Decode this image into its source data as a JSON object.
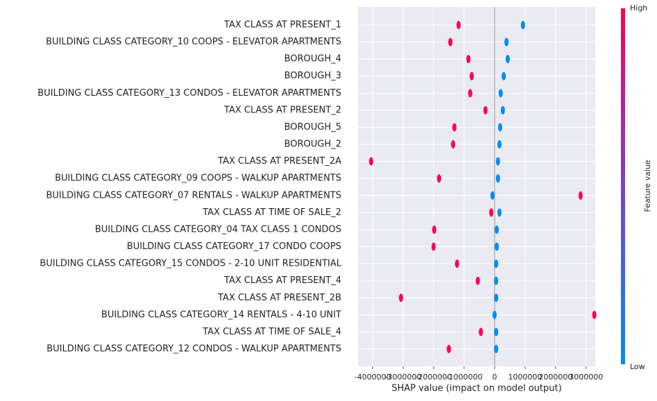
{
  "chart_data": {
    "type": "beeswarm",
    "xlabel": "SHAP value (impact on model output)",
    "colorbar_label": "Feature value",
    "colorbar_high": "High",
    "colorbar_low": "Low",
    "categories": [
      "TAX CLASS AT PRESENT_1",
      "BUILDING CLASS CATEGORY_10 COOPS - ELEVATOR APARTMENTS",
      "BOROUGH_4",
      "BOROUGH_3",
      "BUILDING CLASS CATEGORY_13 CONDOS - ELEVATOR APARTMENTS",
      "TAX CLASS AT PRESENT_2",
      "BOROUGH_5",
      "BOROUGH_2",
      "TAX CLASS AT PRESENT_2A",
      "BUILDING CLASS CATEGORY_09 COOPS - WALKUP APARTMENTS",
      "BUILDING CLASS CATEGORY_07 RENTALS - WALKUP APARTMENTS",
      "TAX CLASS AT TIME OF SALE_2",
      "BUILDING CLASS CATEGORY_04 TAX CLASS 1 CONDOS",
      "BUILDING CLASS CATEGORY_17 CONDO COOPS",
      "BUILDING CLASS CATEGORY_15 CONDOS - 2-10 UNIT RESIDENTIAL",
      "TAX CLASS AT PRESENT_4",
      "TAX CLASS AT PRESENT_2B",
      "BUILDING CLASS CATEGORY_14 RENTALS - 4-10 UNIT",
      "TAX CLASS AT TIME OF SALE_4",
      "BUILDING CLASS CATEGORY_12 CONDOS - WALKUP APARTMENTS"
    ],
    "series": [
      {
        "color": "#ff0052",
        "values": [
          -1180000,
          -1450000,
          -860000,
          -750000,
          -800000,
          -300000,
          -1320000,
          -1360000,
          -4050000,
          -1820000,
          2820000,
          -110000,
          -1980000,
          -2000000,
          -1230000,
          -550000,
          -3070000,
          3270000,
          -450000,
          -1500000
        ]
      },
      {
        "color": "#008bfb",
        "values": [
          930000,
          390000,
          430000,
          300000,
          200000,
          270000,
          180000,
          160000,
          110000,
          110000,
          -70000,
          160000,
          70000,
          70000,
          50000,
          50000,
          50000,
          0,
          50000,
          50000
        ]
      }
    ],
    "xlim": [
      -4480000,
      3300000
    ],
    "xticks": [
      -4000000,
      -3000000,
      -2000000,
      -1000000,
      0,
      1000000,
      2000000,
      3000000
    ],
    "grid": true
  }
}
